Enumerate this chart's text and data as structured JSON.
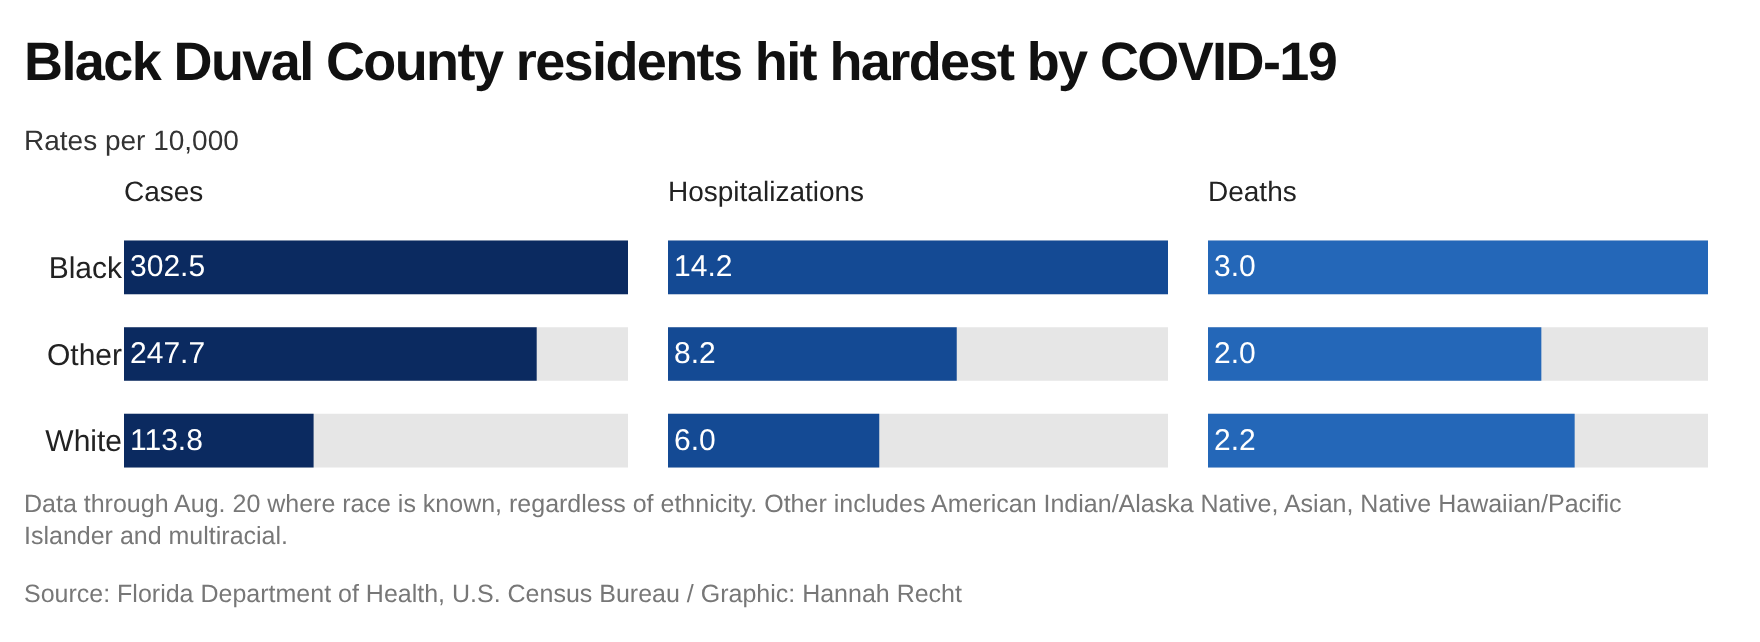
{
  "chart_data": [
    {
      "type": "other",
      "title": "Black Duval County residents hit hardest by COVID-19",
      "subtitle": "Rates per 10,000",
      "annotations": [
        "Data through Aug. 20 where race is known, regardless of ethnicity. Other includes American Indian/Alaska Native, Asian, Native Hawaiian/Pacific Islander and multiracial.",
        "Source: Florida Department of Health, U.S. Census Bureau / Graphic: Hannah Recht"
      ]
    },
    {
      "type": "bar",
      "orientation": "horizontal",
      "title": "Cases",
      "categories": [
        "Black",
        "Other",
        "White"
      ],
      "values": [
        302.5,
        247.7,
        113.8
      ],
      "value_labels": [
        "302.5",
        "247.7",
        "113.8"
      ],
      "color": "#0b2a60",
      "tick_labels": "y"
    },
    {
      "type": "bar",
      "orientation": "horizontal",
      "title": "Hospitalizations",
      "values": [
        14.2,
        8.2,
        6.0
      ],
      "value_labels": [
        "14.2",
        "8.2",
        "6.0"
      ],
      "color": "#144a94",
      "tick_labels": false
    },
    {
      "type": "bar",
      "orientation": "horizontal",
      "title": "Deaths",
      "values": [
        3.0,
        2.0,
        2.2
      ],
      "value_labels": [
        "3.0",
        "2.0",
        "2.2"
      ],
      "color": "#2467b8",
      "tick_labels": false
    }
  ]
}
